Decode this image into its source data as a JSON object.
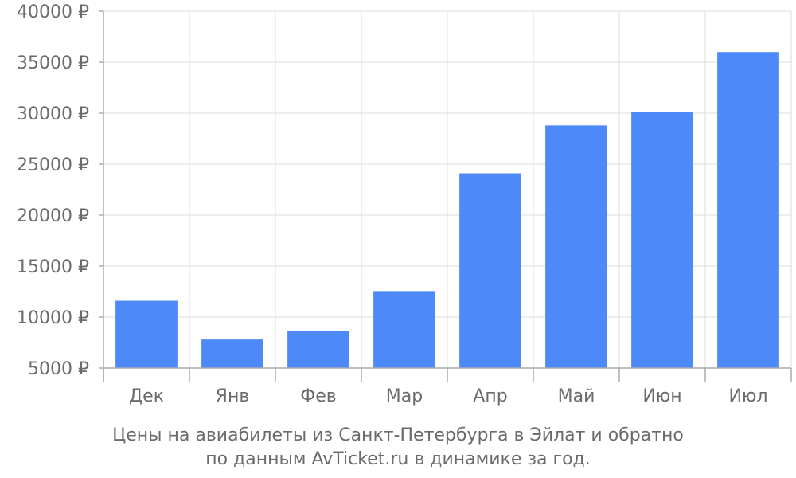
{
  "chart_data": {
    "type": "bar",
    "categories": [
      "Дек",
      "Янв",
      "Фев",
      "Мар",
      "Апр",
      "Май",
      "Июн",
      "Июл"
    ],
    "values": [
      11600,
      7800,
      8600,
      12550,
      24100,
      28800,
      30150,
      36000
    ],
    "ylim": [
      5000,
      40000
    ],
    "yticks": [
      5000,
      10000,
      15000,
      20000,
      25000,
      30000,
      35000,
      40000
    ],
    "ytick_suffix": " ₽",
    "grid": true,
    "bar_color": "#4d89f9",
    "grid_color": "#dddddd",
    "axis_color": "#aaaaaa",
    "text_color": "#6b6b6b"
  },
  "caption": {
    "line1": "Цены на авиабилеты из Санкт-Петербурга в Эйлат и обратно",
    "line2": "по данным AvTicket.ru в динамике за год."
  }
}
